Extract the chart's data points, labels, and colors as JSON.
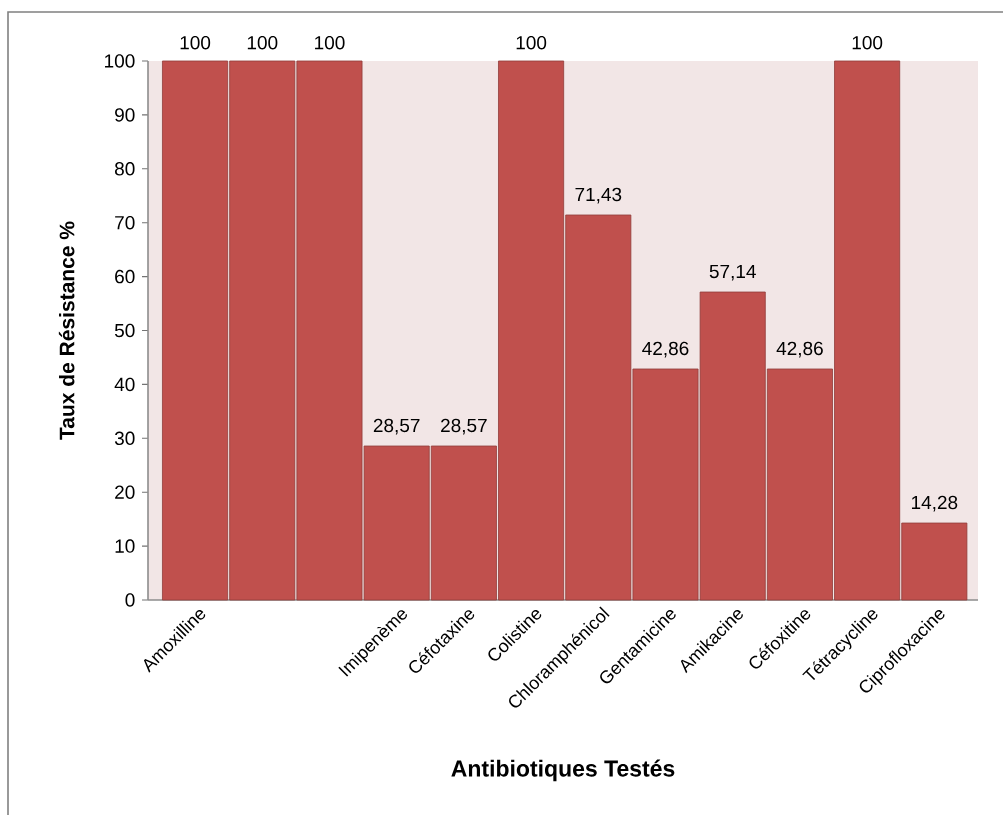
{
  "chart_data": {
    "type": "bar",
    "xlabel": "Antibiotiques Testés",
    "ylabel": "Taux de Résistance %",
    "categories": [
      "Amoxilline",
      null,
      null,
      "Imipenème",
      "Céfotaxine",
      "Colistine",
      "Chloramphénicol",
      "Gentamicine",
      "Amikacine",
      "Céfoxitine",
      "Tétracycline",
      "Ciprofloxacine"
    ],
    "values": [
      100,
      100,
      100,
      28.57,
      28.57,
      100,
      71.43,
      42.86,
      57.14,
      42.86,
      100,
      14.28
    ],
    "value_labels": [
      "100",
      "100",
      "100",
      "28,57",
      "28,57",
      "100",
      "71,43",
      "42,86",
      "57,14",
      "42,86",
      "100",
      "14,28"
    ],
    "color": "#c0504d",
    "ylim": [
      0,
      100
    ],
    "yticks": [
      0,
      10,
      20,
      30,
      40,
      50,
      60,
      70,
      80,
      90,
      100
    ]
  }
}
